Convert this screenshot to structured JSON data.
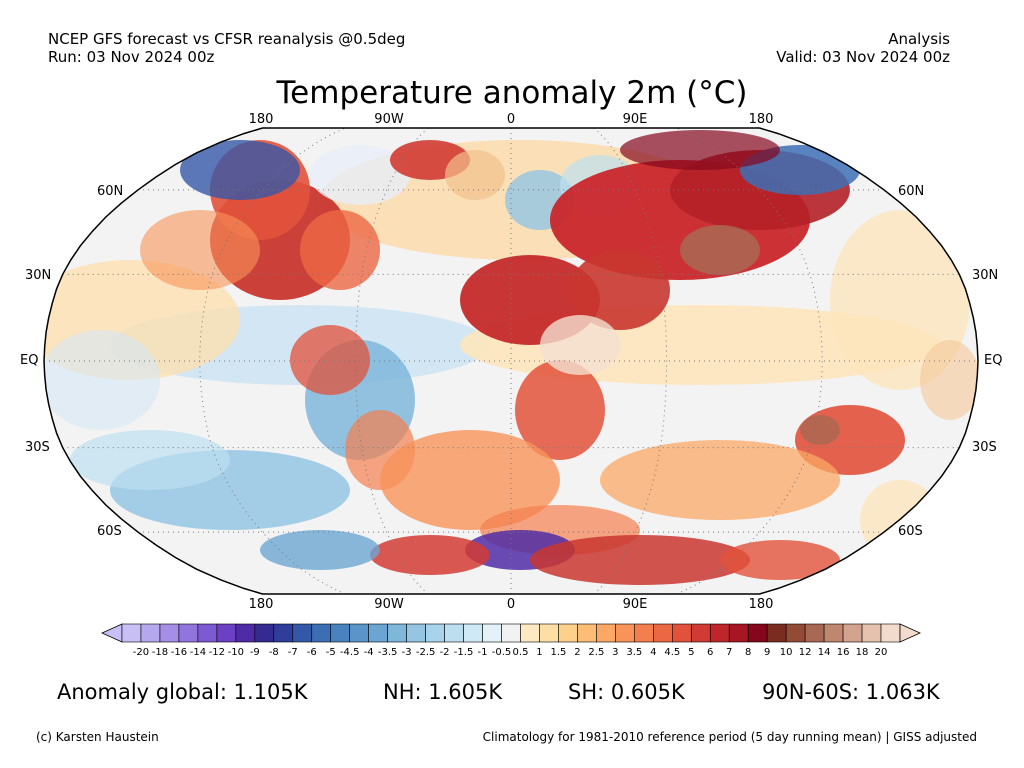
{
  "header": {
    "left_line1": "NCEP GFS forecast vs CFSR reanalysis @0.5deg",
    "left_line2": "Run: 03 Nov 2024 00z",
    "right_line1": "Analysis",
    "right_line2": "Valid: 03 Nov 2024 00z"
  },
  "title": "Temperature anomaly 2m (°C)",
  "map": {
    "projection": "Robinson",
    "lon_labels_top": [
      "180",
      "90W",
      "0",
      "90E",
      "180"
    ],
    "lon_labels_bottom": [
      "180",
      "90W",
      "0",
      "90E",
      "180"
    ],
    "lat_labels_left": [
      "60N",
      "30N",
      "EQ",
      "30S",
      "60S"
    ],
    "lat_labels_right": [
      "60N",
      "30N",
      "EQ",
      "30S",
      "60S"
    ],
    "ocean_color": "#f3f3f3",
    "land_outline_color": "#000000"
  },
  "colorbar": {
    "labels": [
      "-20",
      "-18",
      "-16",
      "-14",
      "-12",
      "-10",
      "-9",
      "-8",
      "-7",
      "-6",
      "-5",
      "-4.5",
      "-4",
      "-3.5",
      "-3",
      "-2.5",
      "-2",
      "-1.5",
      "-1",
      "-0.5",
      "0.5",
      "1",
      "1.5",
      "2",
      "2.5",
      "3",
      "3.5",
      "4",
      "4.5",
      "5",
      "6",
      "7",
      "8",
      "9",
      "10",
      "12",
      "14",
      "16",
      "18",
      "20"
    ],
    "colors": [
      "#c8c0f5",
      "#b6a8ee",
      "#a48ee6",
      "#9174dd",
      "#7e5ad2",
      "#6b40c4",
      "#4f2ca6",
      "#352a92",
      "#2e3e9a",
      "#3458a8",
      "#3c6eb4",
      "#4a82bf",
      "#5a94c9",
      "#6ba6d2",
      "#7fb7db",
      "#94c6e3",
      "#a9d3ea",
      "#bcdff0",
      "#cfe9f5",
      "#e3f2f9",
      "#f2f2f2",
      "#fde9c2",
      "#fddfa6",
      "#fdd08c",
      "#fcbd77",
      "#fba866",
      "#f89459",
      "#f47f4e",
      "#ec6844",
      "#e2523b",
      "#d23b33",
      "#bf262b",
      "#a71723",
      "#85071c",
      "#7a2d1e",
      "#934a37",
      "#a96853",
      "#bf8670",
      "#d2a48f",
      "#e4c2ae",
      "#f2dbcc"
    ]
  },
  "stats": {
    "global": "Anomaly global: 1.105K",
    "nh": "NH: 1.605K",
    "sh": "SH: 0.605K",
    "arctic": "90N-60S: 1.063K"
  },
  "footer": {
    "left": "(c) Karsten Haustein",
    "right": "Climatology for 1981-2010 reference period (5 day running mean) | GISS adjusted"
  }
}
